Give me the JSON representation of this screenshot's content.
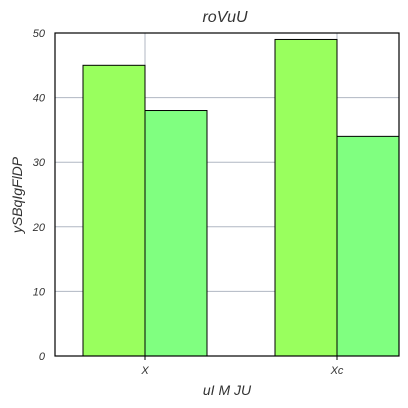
{
  "chart_data": {
    "type": "bar",
    "title": "roVuU",
    "xlabel": "uI M JU",
    "ylabel": "ySBqIgFlDP",
    "categories": [
      "X",
      "Xc"
    ],
    "series": [
      {
        "values": [
          45,
          49
        ],
        "color": "#99ff5e"
      },
      {
        "values": [
          38,
          34
        ],
        "color": "#80ff80"
      }
    ],
    "ylim": [
      0,
      50
    ],
    "yticks": [
      0,
      10,
      20,
      30,
      40,
      50
    ],
    "grid": true,
    "legend": "none"
  }
}
